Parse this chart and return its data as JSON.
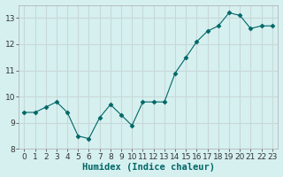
{
  "x": [
    0,
    1,
    2,
    3,
    4,
    5,
    6,
    7,
    8,
    9,
    10,
    11,
    12,
    13,
    14,
    15,
    16,
    17,
    18,
    19,
    20,
    21,
    22,
    23
  ],
  "y": [
    9.4,
    9.4,
    9.6,
    9.8,
    9.4,
    8.5,
    8.4,
    9.2,
    9.7,
    9.3,
    8.9,
    9.8,
    9.8,
    9.8,
    10.9,
    11.5,
    12.1,
    12.5,
    12.7,
    13.2,
    13.1,
    12.6,
    12.7,
    12.7
  ],
  "line_color": "#006666",
  "marker": "D",
  "marker_size": 2.5,
  "background_color": "#d6f0f0",
  "grid_color": "#c8d8d8",
  "xlabel": "Humidex (Indice chaleur)",
  "ylim": [
    8,
    13.5
  ],
  "xlim": [
    -0.5,
    23.5
  ],
  "yticks": [
    8,
    9,
    10,
    11,
    12,
    13
  ],
  "xticks": [
    0,
    1,
    2,
    3,
    4,
    5,
    6,
    7,
    8,
    9,
    10,
    11,
    12,
    13,
    14,
    15,
    16,
    17,
    18,
    19,
    20,
    21,
    22,
    23
  ],
  "xlabel_fontsize": 7.5,
  "tick_fontsize": 6.5
}
